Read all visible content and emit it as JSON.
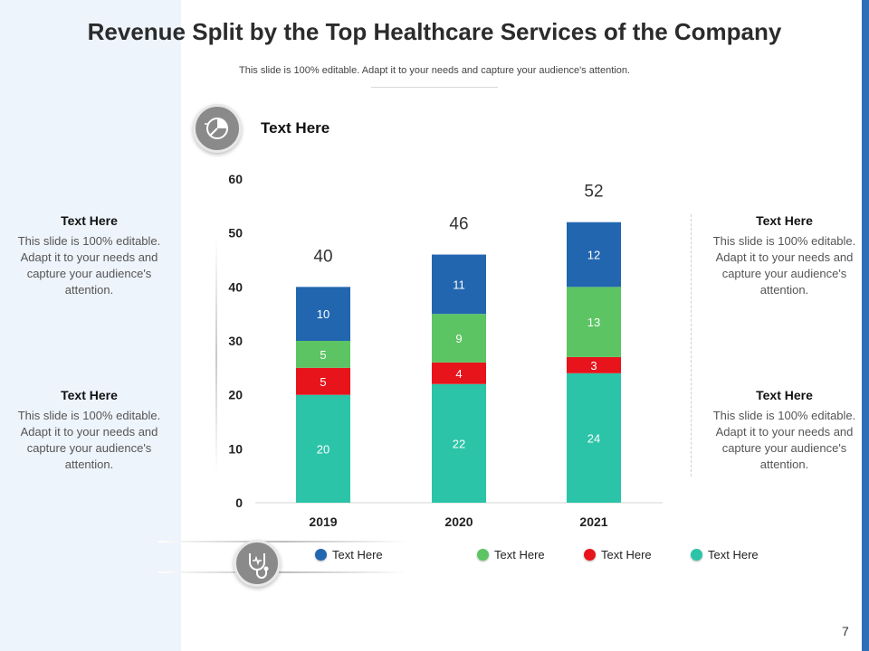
{
  "slide": {
    "title": "Revenue Split by the Top Healthcare Services of the Company",
    "subtitle": "This slide is 100% editable. Adapt it to your needs and capture your audience's attention.",
    "chart_heading": "Text Here",
    "page_number": "7"
  },
  "side_notes": [
    {
      "title": "Text Here",
      "body": "This slide is 100% editable. Adapt it to your needs and capture your audience's attention."
    },
    {
      "title": "Text Here",
      "body": "This slide is 100% editable. Adapt it to your needs and capture your audience's attention."
    },
    {
      "title": "Text Here",
      "body": "This slide is 100% editable. Adapt it to your needs and capture your audience's attention."
    },
    {
      "title": "Text Here",
      "body": "This slide is 100% editable. Adapt it to your needs and capture your audience's attention."
    }
  ],
  "icons": {
    "chart_icon": "pie-chart-icon",
    "legend_icon": "stethoscope-icon"
  },
  "chart_data": {
    "type": "bar",
    "stacked": true,
    "title": "Text Here",
    "categories": [
      "2019",
      "2020",
      "2021"
    ],
    "series": [
      {
        "name": "Text Here",
        "color": "#2bc4a8",
        "values": [
          20,
          22,
          24
        ]
      },
      {
        "name": "Text Here",
        "color": "#e8141b",
        "values": [
          5,
          4,
          3
        ]
      },
      {
        "name": "Text Here",
        "color": "#5cc463",
        "values": [
          5,
          9,
          13
        ]
      },
      {
        "name": "Text Here",
        "color": "#2266b0",
        "values": [
          10,
          11,
          12
        ]
      }
    ],
    "totals": [
      40,
      46,
      52
    ],
    "ylim": [
      0,
      60
    ],
    "yticks": [
      0,
      10,
      20,
      30,
      40,
      50,
      60
    ],
    "legend": [
      {
        "label": "Text Here",
        "color": "#2266b0"
      },
      {
        "label": "Text Here",
        "color": "#5cc463"
      },
      {
        "label": "Text Here",
        "color": "#e8141b"
      },
      {
        "label": "Text Here",
        "color": "#2bc4a8"
      }
    ]
  }
}
